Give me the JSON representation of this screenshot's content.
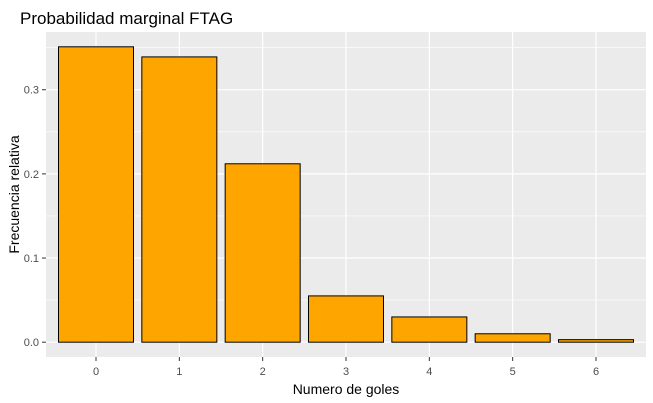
{
  "chart_data": {
    "type": "bar",
    "title": "Probabilidad marginal FTAG",
    "xlabel": "Numero de goles",
    "ylabel": "Frecuencia relativa",
    "categories": [
      "0",
      "1",
      "2",
      "3",
      "4",
      "5",
      "6"
    ],
    "values": [
      0.351,
      0.339,
      0.212,
      0.055,
      0.03,
      0.01,
      0.003
    ],
    "ylim": [
      -0.0176,
      0.3686
    ],
    "yticks": [
      0.0,
      0.1,
      0.2,
      0.3
    ],
    "ytick_labels": [
      "0.0",
      "0.1",
      "0.2",
      "0.3"
    ],
    "grid": true,
    "legend": "none",
    "colors": {
      "bar_fill": "#FFA500",
      "bar_stroke": "#000000",
      "panel_background": "#EBEBEB",
      "grid": "#FFFFFF"
    }
  }
}
